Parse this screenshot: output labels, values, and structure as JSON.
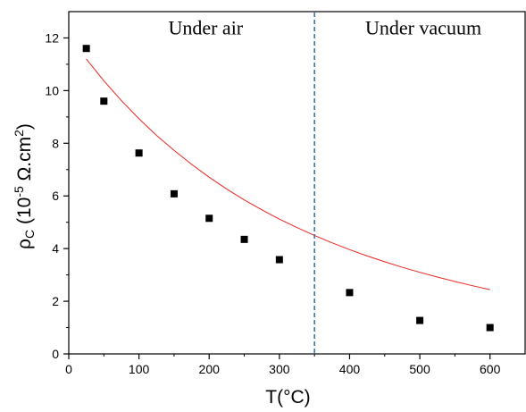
{
  "chart_data": {
    "type": "scatter",
    "xlabel": "T(°C)",
    "ylabel": {
      "main": "ρ",
      "sub": "C",
      "open": " (10",
      "exp": "-5",
      "unit": " Ω.cm",
      "exp2": "2",
      "close": ")"
    },
    "xlim": [
      0,
      650
    ],
    "ylim": [
      0,
      13
    ],
    "xticks": [
      0,
      100,
      200,
      300,
      400,
      500,
      600
    ],
    "yticks": [
      0,
      2,
      4,
      6,
      8,
      10,
      12
    ],
    "grid": false,
    "series": [
      {
        "type": "scatter",
        "marker": "square",
        "color": "#000000",
        "x": [
          25,
          50,
          100,
          150,
          200,
          250,
          300,
          400,
          500,
          600
        ],
        "y": [
          11.6,
          9.6,
          7.63,
          6.08,
          5.15,
          4.35,
          3.58,
          2.33,
          1.27,
          1.0
        ]
      },
      {
        "type": "line",
        "color": "#e8261f",
        "x": [
          25,
          50,
          75,
          100,
          125,
          150,
          175,
          200,
          225,
          250,
          275,
          300,
          325,
          350,
          375,
          400,
          425,
          450,
          475,
          500,
          525,
          550,
          575,
          600
        ],
        "y": [
          11.2,
          10.37,
          9.62,
          8.93,
          8.3,
          7.73,
          7.2,
          6.71,
          6.26,
          5.85,
          5.47,
          5.12,
          4.8,
          4.5,
          4.22,
          3.96,
          3.72,
          3.5,
          3.29,
          3.1,
          2.92,
          2.75,
          2.59,
          2.44
        ]
      }
    ],
    "divider": {
      "x": 350,
      "color": "#2f6fb5",
      "style": "dashed"
    },
    "annotations": [
      {
        "text": "Under air",
        "x": 195,
        "y": 12.4
      },
      {
        "text": "Under vacuum",
        "x": 505,
        "y": 12.4
      }
    ]
  }
}
